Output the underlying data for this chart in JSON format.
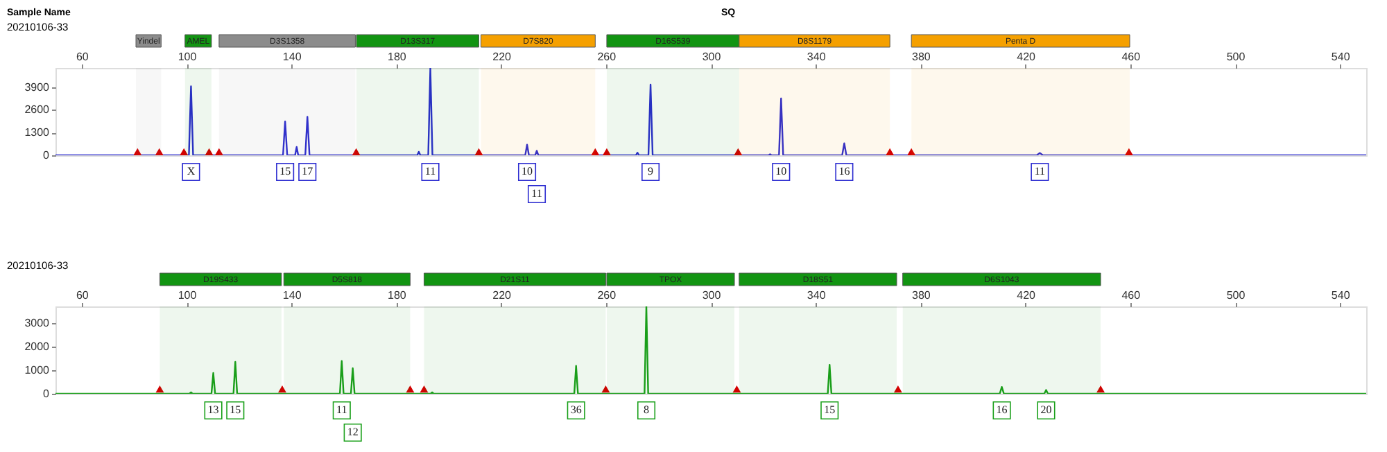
{
  "chart_data": [
    {
      "type": "line",
      "title": "20210106-33",
      "annotations": [
        "Sample Name",
        "SQ",
        {
          "text": "X",
          "x": 101.7,
          "y": 0
        },
        {
          "text": "15",
          "x": 137.6,
          "y": 0
        },
        {
          "text": "17",
          "x": 146.1,
          "y": 0
        },
        {
          "text": "11",
          "x": 193,
          "y": 0
        },
        {
          "text": "10",
          "x": 229.9,
          "y": 0
        },
        {
          "text": "11",
          "x": 233.6,
          "y": 0
        },
        {
          "text": "9",
          "x": 277,
          "y": 0
        },
        {
          "text": "10",
          "x": 326.8,
          "y": 0
        },
        {
          "text": "16",
          "x": 350.9,
          "y": 0
        },
        {
          "text": "11",
          "x": 425.5,
          "y": 0
        }
      ],
      "xlim": [
        50,
        550
      ],
      "xticks": [
        60,
        100,
        140,
        180,
        220,
        260,
        300,
        340,
        380,
        420,
        460,
        500,
        540
      ],
      "ylim": [
        0,
        5000
      ],
      "yticks": [
        0,
        1300,
        2600,
        3900
      ],
      "series": [
        {
          "color": "#2b2bd0",
          "x": [
            50,
            100.9,
            101.7,
            102.5,
            136.8,
            137.6,
            138.4,
            141.4,
            142,
            142.6,
            145.3,
            146.1,
            146.9,
            188,
            188.6,
            189.2,
            192.2,
            193,
            193.8,
            229.2,
            229.9,
            230.6,
            233,
            233.6,
            234.2,
            271.4,
            272,
            272.6,
            276.2,
            277,
            277.8,
            322,
            322.6,
            323.2,
            326,
            326.8,
            327.6,
            350.1,
            350.9,
            351.7,
            424.3,
            425.5,
            426.7,
            550
          ],
          "values": [
            0,
            0,
            3950,
            0,
            0,
            1940,
            0,
            0,
            480,
            0,
            0,
            2200,
            0,
            0,
            200,
            0,
            0,
            5000,
            0,
            0,
            610,
            0,
            0,
            260,
            0,
            0,
            150,
            0,
            0,
            4050,
            0,
            0,
            60,
            0,
            0,
            3260,
            0,
            0,
            690,
            0,
            0,
            130,
            0,
            0
          ]
        },
        {
          "type": "scatter",
          "marker": "triangle",
          "color": "#d40000",
          "x": [
            81.3,
            89.6,
            99,
            108.6,
            112.4,
            164.7,
            211.5,
            255.9,
            260.3,
            310.4,
            368.3,
            376.5,
            459.5
          ],
          "values": [
            200,
            200,
            200,
            200,
            200,
            200,
            200,
            200,
            200,
            200,
            200,
            200,
            200
          ]
        }
      ],
      "bands": [
        {
          "axis": "x",
          "from": 80.7,
          "to": 90.3,
          "label": "Yindel",
          "color": "#8c8c8c"
        },
        {
          "axis": "x",
          "from": 99.4,
          "to": 109.5,
          "label": "AMEL",
          "color": "#129412"
        },
        {
          "axis": "x",
          "from": 112.4,
          "to": 164.4,
          "label": "D3S1358",
          "color": "#8c8c8c"
        },
        {
          "axis": "x",
          "from": 164.8,
          "to": 211.5,
          "label": "D13S317",
          "color": "#129412"
        },
        {
          "axis": "x",
          "from": 212.3,
          "to": 255.9,
          "label": "D7S820",
          "color": "#f5a000"
        },
        {
          "axis": "x",
          "from": 260.3,
          "to": 310.8,
          "label": "D16S539",
          "color": "#129412"
        },
        {
          "axis": "x",
          "from": 310.8,
          "to": 368.3,
          "label": "D8S1179",
          "color": "#f5a000"
        },
        {
          "axis": "x",
          "from": 376.5,
          "to": 459.8,
          "label": "Penta D",
          "color": "#f5a000"
        }
      ]
    },
    {
      "type": "line",
      "title": "20210106-33",
      "annotations": [
        {
          "text": "13",
          "x": 110.2,
          "y": 0
        },
        {
          "text": "15",
          "x": 118.6,
          "y": 0
        },
        {
          "text": "11",
          "x": 159.2,
          "y": 0
        },
        {
          "text": "12",
          "x": 163.4,
          "y": 0
        },
        {
          "text": "36",
          "x": 248.6,
          "y": 0
        },
        {
          "text": "8",
          "x": 275.4,
          "y": 0
        },
        {
          "text": "15",
          "x": 345.3,
          "y": 0
        },
        {
          "text": "16",
          "x": 411,
          "y": 0
        },
        {
          "text": "20",
          "x": 427.9,
          "y": 0
        }
      ],
      "xlim": [
        50,
        550
      ],
      "xticks": [
        60,
        100,
        140,
        180,
        220,
        260,
        300,
        340,
        380,
        420,
        460,
        500,
        540
      ],
      "ylim": [
        0,
        3700
      ],
      "yticks": [
        0,
        1000,
        2000,
        3000
      ],
      "series": [
        {
          "color": "#1aa01a",
          "x": [
            50,
            101.1,
            101.7,
            102.3,
            109.5,
            110.2,
            110.9,
            117.9,
            118.6,
            119.3,
            158.5,
            159.2,
            159.9,
            162.7,
            163.4,
            164.1,
            193.1,
            193.7,
            194.3,
            247.9,
            248.6,
            249.3,
            274.7,
            275.4,
            276.1,
            344.6,
            345.3,
            346,
            410.2,
            411,
            411.8,
            427.2,
            427.9,
            428.6,
            550
          ],
          "values": [
            0,
            0,
            60,
            0,
            0,
            880,
            0,
            0,
            1350,
            0,
            0,
            1390,
            0,
            0,
            1080,
            0,
            0,
            60,
            0,
            0,
            1180,
            0,
            0,
            3700,
            0,
            0,
            1230,
            0,
            0,
            290,
            0,
            0,
            160,
            0,
            0
          ]
        },
        {
          "type": "scatter",
          "marker": "triangle",
          "color": "#d40000",
          "x": [
            89.8,
            136.5,
            185.3,
            190.6,
            259.9,
            309.9,
            371.4,
            448.7
          ],
          "values": [
            200,
            200,
            200,
            200,
            200,
            200,
            200,
            200
          ]
        }
      ],
      "bands": [
        {
          "axis": "x",
          "from": 89.8,
          "to": 136.2,
          "label": "D19S433",
          "color": "#129412"
        },
        {
          "axis": "x",
          "from": 137.1,
          "to": 185.3,
          "label": "D5S818",
          "color": "#129412"
        },
        {
          "axis": "x",
          "from": 190.6,
          "to": 259.9,
          "label": "D21S11",
          "color": "#129412"
        },
        {
          "axis": "x",
          "from": 260.3,
          "to": 309,
          "label": "TPOX",
          "color": "#129412"
        },
        {
          "axis": "x",
          "from": 310.8,
          "to": 370.9,
          "label": "D18S51",
          "color": "#129412"
        },
        {
          "axis": "x",
          "from": 373.2,
          "to": 448.7,
          "label": "D6S1043",
          "color": "#129412"
        }
      ]
    }
  ]
}
